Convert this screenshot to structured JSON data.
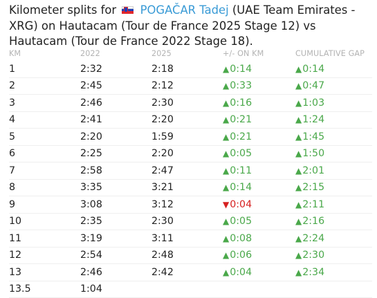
{
  "header": {
    "prefix": "Kilometer splits for",
    "rider_name": "POGAČAR Tadej",
    "suffix": "(UAE Team Emirates - XRG) on Hautacam (Tour de France 2025 Stage 12) vs Hautacam (Tour de France 2022 Stage 18).",
    "flag_icon": "slovenia-flag-icon"
  },
  "colors": {
    "gain": "#4aa84a",
    "loss": "#d62020",
    "link": "#3a9bd6",
    "column_header": "#b3b3b3"
  },
  "table": {
    "columns": [
      "KM",
      "2022",
      "2025",
      "+/- ON KM",
      "CUMULATIVE GAP"
    ],
    "rows": [
      {
        "km": "1",
        "y2022": "2:32",
        "y2025": "2:18",
        "diff": "0:14",
        "diff_dir": "up",
        "cum": "0:14",
        "cum_dir": "up"
      },
      {
        "km": "2",
        "y2022": "2:45",
        "y2025": "2:12",
        "diff": "0:33",
        "diff_dir": "up",
        "cum": "0:47",
        "cum_dir": "up"
      },
      {
        "km": "3",
        "y2022": "2:46",
        "y2025": "2:30",
        "diff": "0:16",
        "diff_dir": "up",
        "cum": "1:03",
        "cum_dir": "up"
      },
      {
        "km": "4",
        "y2022": "2:41",
        "y2025": "2:20",
        "diff": "0:21",
        "diff_dir": "up",
        "cum": "1:24",
        "cum_dir": "up"
      },
      {
        "km": "5",
        "y2022": "2:20",
        "y2025": "1:59",
        "diff": "0:21",
        "diff_dir": "up",
        "cum": "1:45",
        "cum_dir": "up"
      },
      {
        "km": "6",
        "y2022": "2:25",
        "y2025": "2:20",
        "diff": "0:05",
        "diff_dir": "up",
        "cum": "1:50",
        "cum_dir": "up"
      },
      {
        "km": "7",
        "y2022": "2:58",
        "y2025": "2:47",
        "diff": "0:11",
        "diff_dir": "up",
        "cum": "2:01",
        "cum_dir": "up"
      },
      {
        "km": "8",
        "y2022": "3:35",
        "y2025": "3:21",
        "diff": "0:14",
        "diff_dir": "up",
        "cum": "2:15",
        "cum_dir": "up"
      },
      {
        "km": "9",
        "y2022": "3:08",
        "y2025": "3:12",
        "diff": "0:04",
        "diff_dir": "down",
        "cum": "2:11",
        "cum_dir": "up"
      },
      {
        "km": "10",
        "y2022": "2:35",
        "y2025": "2:30",
        "diff": "0:05",
        "diff_dir": "up",
        "cum": "2:16",
        "cum_dir": "up"
      },
      {
        "km": "11",
        "y2022": "3:19",
        "y2025": "3:11",
        "diff": "0:08",
        "diff_dir": "up",
        "cum": "2:24",
        "cum_dir": "up"
      },
      {
        "km": "12",
        "y2022": "2:54",
        "y2025": "2:48",
        "diff": "0:06",
        "diff_dir": "up",
        "cum": "2:30",
        "cum_dir": "up"
      },
      {
        "km": "13",
        "y2022": "2:46",
        "y2025": "2:42",
        "diff": "0:04",
        "diff_dir": "up",
        "cum": "2:34",
        "cum_dir": "up"
      },
      {
        "km": "13.5",
        "y2022": "1:04",
        "y2025": "",
        "diff": "",
        "diff_dir": "",
        "cum": "",
        "cum_dir": ""
      }
    ]
  }
}
